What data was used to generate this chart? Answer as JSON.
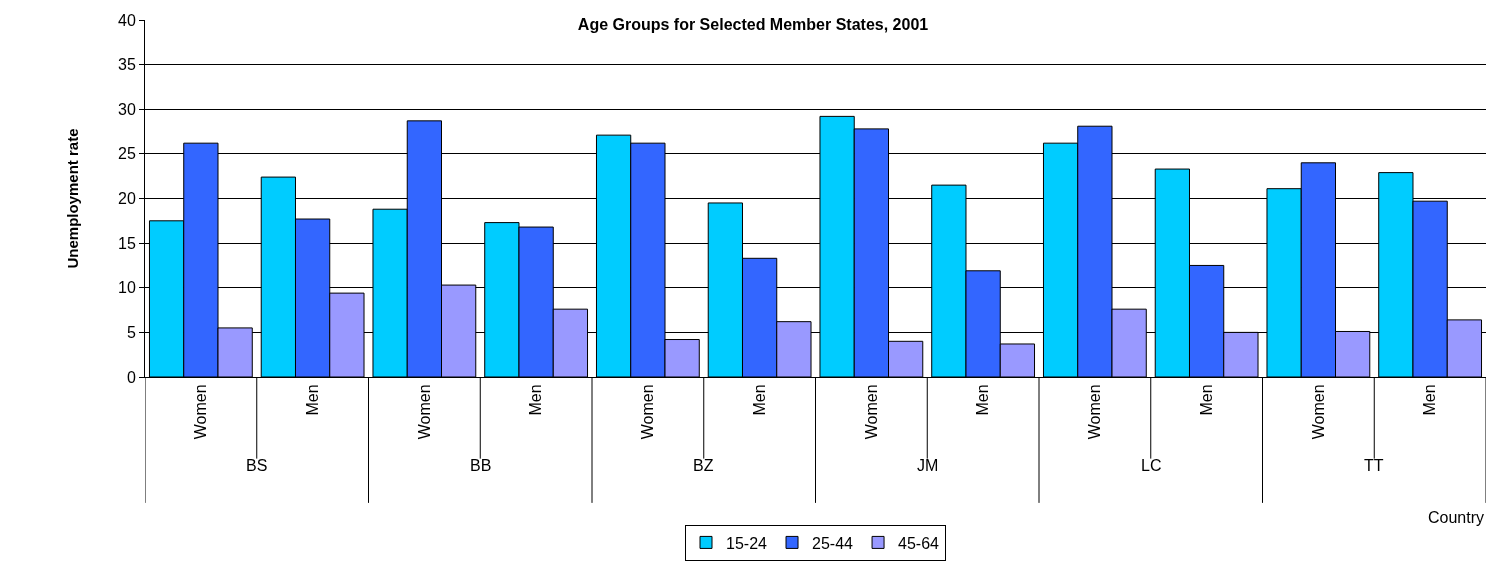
{
  "chart_data": {
    "type": "bar",
    "title": "Age Groups for Selected Member States, 2001",
    "xlabel": "Country",
    "ylabel": "Unemployment rate",
    "categories": [
      "Women",
      "Men",
      "Women",
      "Men",
      "Women",
      "Men",
      "Women",
      "Men",
      "Women",
      "Men",
      "Women",
      "Men"
    ],
    "annotations": [
      "BS",
      "BB",
      "BZ",
      "JM",
      "LC",
      "TT"
    ],
    "series": [
      {
        "name": "15-24",
        "color": "#00ccff",
        "values": [
          17.5,
          22.4,
          18.8,
          17.3,
          27.1,
          19.5,
          29.2,
          21.5,
          26.2,
          23.3,
          21.1,
          22.9
        ]
      },
      {
        "name": "25-44",
        "color": "#3366ff",
        "values": [
          26.2,
          17.7,
          28.7,
          16.8,
          26.2,
          13.3,
          27.8,
          11.9,
          28.1,
          12.5,
          24.0,
          19.7
        ]
      },
      {
        "name": "45-64",
        "color": "#9999ff",
        "values": [
          5.5,
          9.4,
          10.3,
          7.6,
          4.2,
          6.2,
          4.0,
          3.7,
          7.6,
          5.0,
          5.1,
          6.4
        ]
      }
    ],
    "ylim": [
      0,
      40
    ],
    "yticks": [
      0,
      5,
      10,
      15,
      20,
      25,
      30,
      35,
      40
    ],
    "grid": "y",
    "legend": "bottom"
  }
}
